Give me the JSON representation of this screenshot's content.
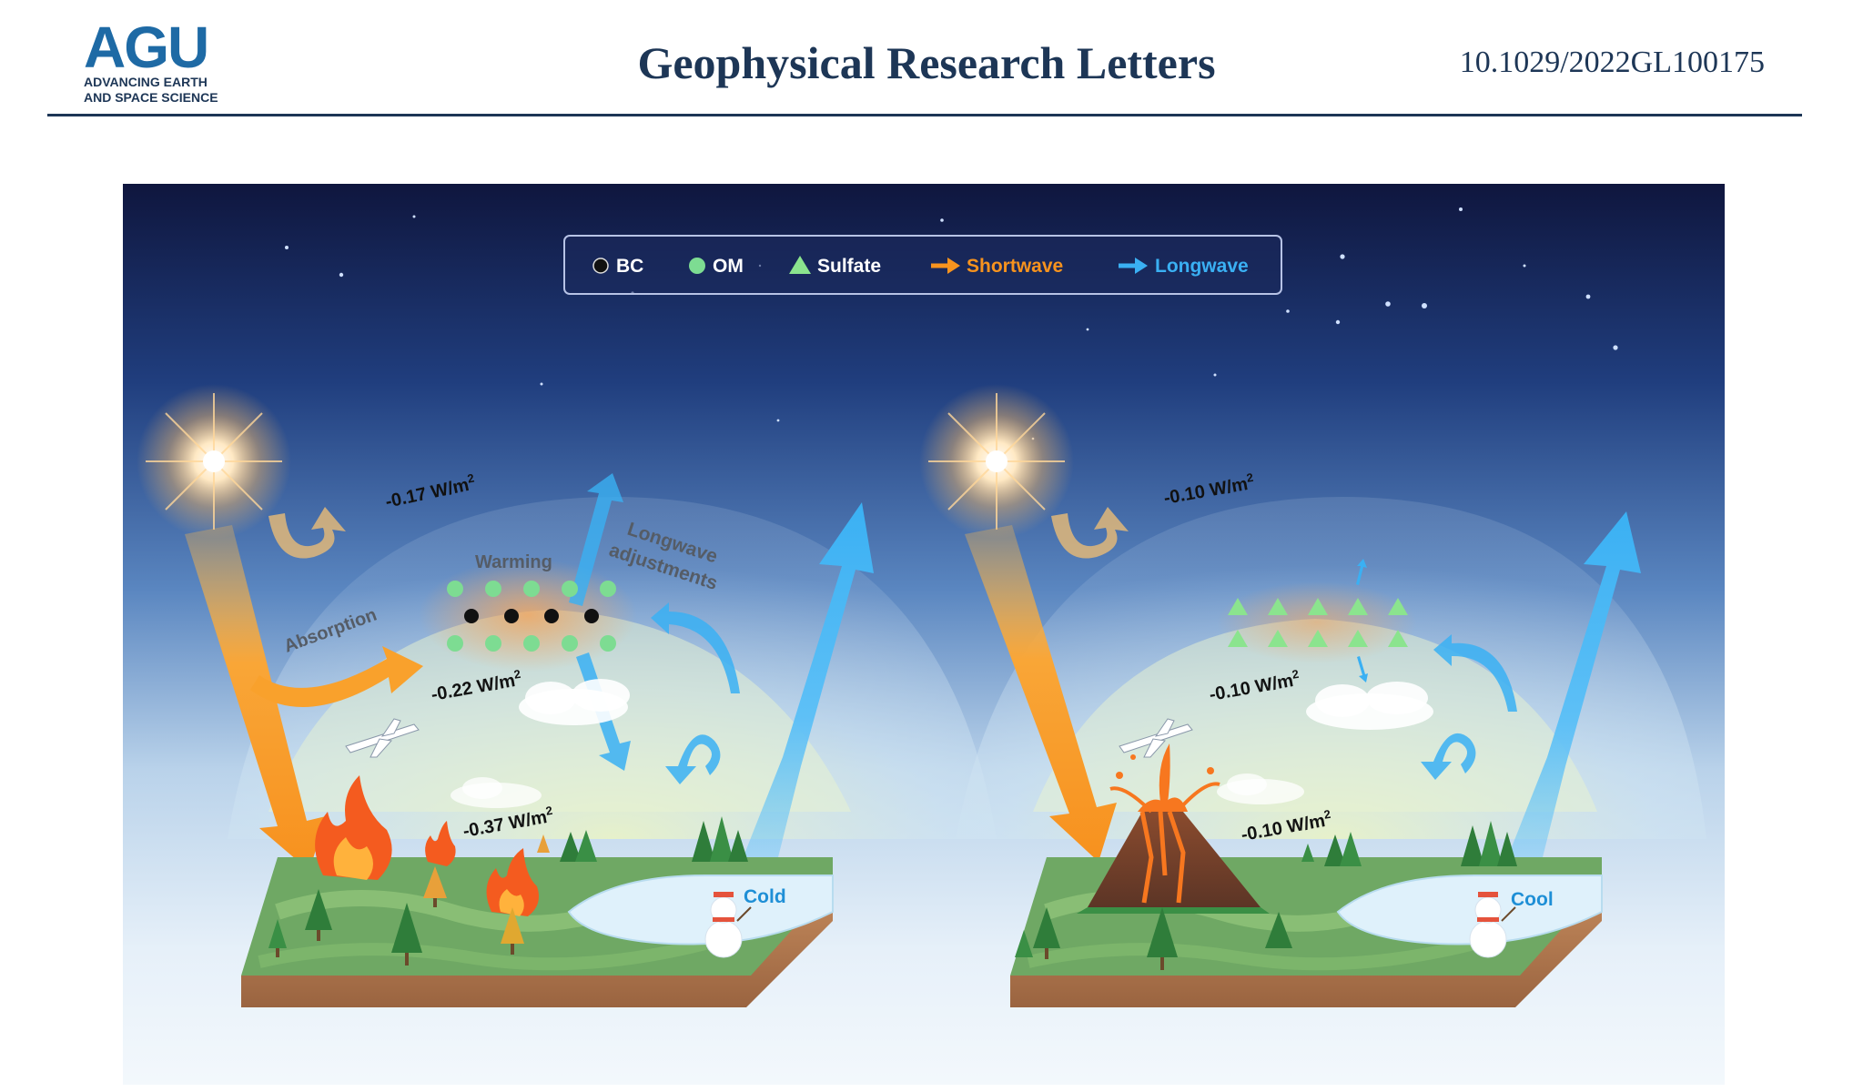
{
  "header": {
    "logo_mark": "AGU",
    "logo_line1": "ADVANCING EARTH",
    "logo_line2": "AND SPACE SCIENCE",
    "journal_title": "Geophysical Research Letters",
    "doi": "10.1029/2022GL100175"
  },
  "legend": {
    "bc": "BC",
    "om": "OM",
    "sulfate": "Sulfate",
    "shortwave": "Shortwave",
    "longwave": "Longwave"
  },
  "left_panel": {
    "toa_label": "-0.17 W/m",
    "warming": "Warming",
    "absorption": "Absorption",
    "longwave_line1": "Longwave",
    "longwave_line2": "adjustments",
    "atm_label": "-0.22 W/m",
    "surface_label": "-0.37 W/m",
    "cold": "Cold"
  },
  "right_panel": {
    "toa_label": "-0.10 W/m",
    "atm_label": "-0.10 W/m",
    "surface_label": "-0.10 W/m",
    "cool": "Cool"
  },
  "superscript": "2",
  "colors": {
    "brand": "#1d3656",
    "shortwave": "#f7931e",
    "longwave": "#3ab0f3",
    "om": "#7ddc92",
    "sulfate": "#8be48e"
  }
}
